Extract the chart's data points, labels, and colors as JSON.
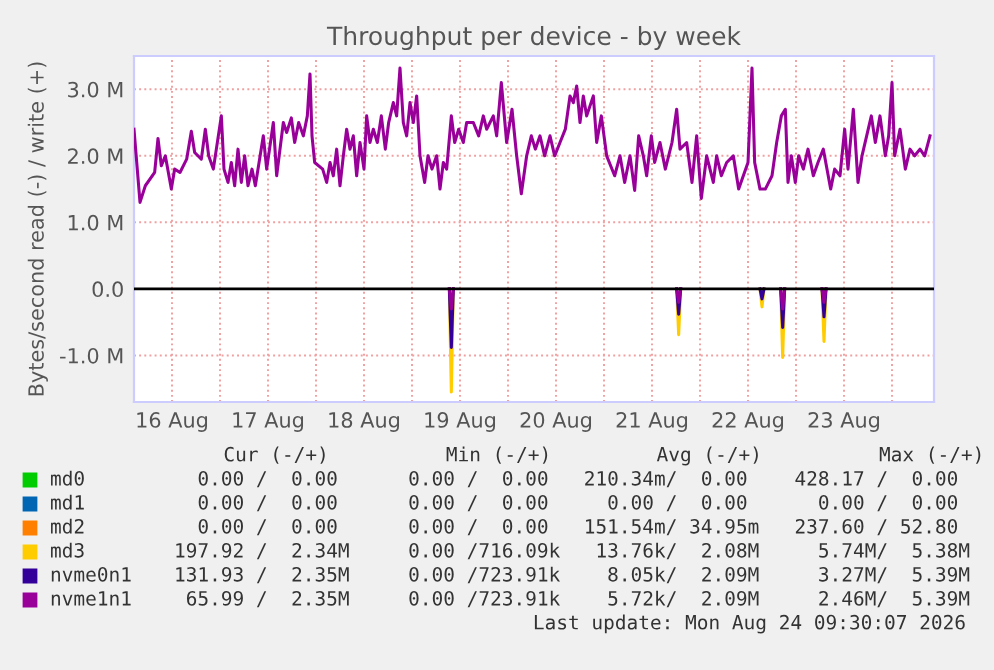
{
  "chart_data": {
    "type": "line",
    "title": "Throughput per device - by week",
    "ylabel": "Bytes/second read (-) / write (+)",
    "xlim": [
      "2026-08-16T02:30",
      "2026-08-24T10:30"
    ],
    "xticks": [
      {
        "value": "2026-08-16T12:00",
        "label": "16 Aug"
      },
      {
        "value": "2026-08-17T12:00",
        "label": "17 Aug"
      },
      {
        "value": "2026-08-18T12:00",
        "label": "18 Aug"
      },
      {
        "value": "2026-08-19T12:00",
        "label": "19 Aug"
      },
      {
        "value": "2026-08-20T12:00",
        "label": "20 Aug"
      },
      {
        "value": "2026-08-21T12:00",
        "label": "21 Aug"
      },
      {
        "value": "2026-08-22T12:00",
        "label": "22 Aug"
      },
      {
        "value": "2026-08-23T12:00",
        "label": "23 Aug"
      },
      {
        "value": "2026-08-17T00:00",
        "label": null
      },
      {
        "value": "2026-08-18T00:00",
        "label": null
      },
      {
        "value": "2026-08-19T00:00",
        "label": null
      },
      {
        "value": "2026-08-20T00:00",
        "label": null
      },
      {
        "value": "2026-08-21T00:00",
        "label": null
      },
      {
        "value": "2026-08-22T00:00",
        "label": null
      },
      {
        "value": "2026-08-23T00:00",
        "label": null
      },
      {
        "value": "2026-08-24T00:00",
        "label": null
      }
    ],
    "ylim": [
      -1.7,
      3.5
    ],
    "yticks": [
      {
        "value": -1.0,
        "label": "-1.0 M"
      },
      {
        "value": 0.0,
        "label": "0.0"
      },
      {
        "value": 1.0,
        "label": "1.0 M"
      },
      {
        "value": 2.0,
        "label": "2.0 M"
      },
      {
        "value": 3.0,
        "label": "3.0 M"
      }
    ],
    "grid": true,
    "legend": "bottom",
    "marker": "none",
    "line_style": "solid",
    "ref_lines": [
      {
        "axis": "y",
        "value": 0,
        "color": "#000000"
      }
    ],
    "series": [
      {
        "name": "md0",
        "color": "#00cc00"
      },
      {
        "name": "md1",
        "color": "#0066b3"
      },
      {
        "name": "md2",
        "color": "#ff8000"
      },
      {
        "name": "md3",
        "color": "#ffcc00",
        "x": [
          "2026-08-19T09:20",
          "2026-08-19T09:50",
          "2026-08-19T10:20",
          "2026-08-19T11:00",
          "2026-08-21T18:10",
          "2026-08-21T18:40",
          "2026-08-21T19:10",
          "2026-08-21T20:00",
          "2026-08-22T15:00",
          "2026-08-22T15:30",
          "2026-08-22T16:00",
          "2026-08-22T17:00",
          "2026-08-22T20:10",
          "2026-08-22T20:40",
          "2026-08-22T21:10",
          "2026-08-22T22:00",
          "2026-08-23T06:30",
          "2026-08-23T07:00",
          "2026-08-23T07:30"
        ],
        "values": [
          0,
          -1.55,
          0,
          null,
          0,
          -0.69,
          0,
          null,
          0,
          -0.27,
          0,
          null,
          0,
          -1.03,
          0,
          null,
          0,
          -0.79,
          0
        ]
      },
      {
        "name": "nvme0n1",
        "color": "#330099",
        "x": [
          "2026-08-19T09:20",
          "2026-08-19T09:50",
          "2026-08-19T10:20",
          "2026-08-19T11:00",
          "2026-08-21T18:10",
          "2026-08-21T18:40",
          "2026-08-21T19:10",
          "2026-08-21T20:00",
          "2026-08-22T15:00",
          "2026-08-22T15:30",
          "2026-08-22T16:00",
          "2026-08-22T17:00",
          "2026-08-22T20:10",
          "2026-08-22T20:40",
          "2026-08-22T21:10",
          "2026-08-22T22:00",
          "2026-08-23T06:30",
          "2026-08-23T07:00",
          "2026-08-23T07:30"
        ],
        "values": [
          0,
          -0.88,
          0,
          null,
          0,
          -0.38,
          0,
          null,
          0,
          -0.15,
          0,
          null,
          0,
          -0.58,
          0,
          null,
          0,
          -0.42,
          0
        ]
      },
      {
        "name": "nvme1n1",
        "color": "#990099",
        "x": [
          "2026-08-16T02:30",
          "2026-08-16T04:00",
          "2026-08-16T05:20",
          "2026-08-16T07:40",
          "2026-08-16T08:30",
          "2026-08-16T09:20",
          "2026-08-16T10:20",
          "2026-08-16T11:50",
          "2026-08-16T12:40",
          "2026-08-16T14:00",
          "2026-08-16T15:40",
          "2026-08-16T16:50",
          "2026-08-16T17:40",
          "2026-08-16T19:20",
          "2026-08-16T20:20",
          "2026-08-16T21:10",
          "2026-08-16T22:20",
          "2026-08-17T00:20",
          "2026-08-17T01:00",
          "2026-08-17T02:00",
          "2026-08-17T02:50",
          "2026-08-17T03:40",
          "2026-08-17T04:30",
          "2026-08-17T05:20",
          "2026-08-17T06:10",
          "2026-08-17T07:00",
          "2026-08-17T08:00",
          "2026-08-17T08:50",
          "2026-08-17T10:50",
          "2026-08-17T11:40",
          "2026-08-17T13:20",
          "2026-08-17T14:10",
          "2026-08-17T15:50",
          "2026-08-17T16:40",
          "2026-08-17T17:50",
          "2026-08-17T18:40",
          "2026-08-17T19:40",
          "2026-08-17T20:50",
          "2026-08-17T21:50",
          "2026-08-17T22:30",
          "2026-08-17T23:00",
          "2026-08-17T23:40",
          "2026-08-18T01:40",
          "2026-08-18T02:40",
          "2026-08-18T03:30",
          "2026-08-18T04:20",
          "2026-08-18T05:10",
          "2026-08-18T06:00",
          "2026-08-18T06:50",
          "2026-08-18T07:40",
          "2026-08-18T08:30",
          "2026-08-18T09:20",
          "2026-08-18T10:10",
          "2026-08-18T11:00",
          "2026-08-18T12:00",
          "2026-08-18T12:40",
          "2026-08-18T13:30",
          "2026-08-18T14:20",
          "2026-08-18T15:20",
          "2026-08-18T16:20",
          "2026-08-18T17:20",
          "2026-08-18T18:10",
          "2026-08-18T19:20",
          "2026-08-18T20:10",
          "2026-08-18T21:00",
          "2026-08-18T21:50",
          "2026-08-18T22:40",
          "2026-08-18T23:30",
          "2026-08-19T00:20",
          "2026-08-19T01:10",
          "2026-08-19T02:00",
          "2026-08-19T03:10",
          "2026-08-19T04:00",
          "2026-08-19T05:00",
          "2026-08-19T06:10",
          "2026-08-19T07:00",
          "2026-08-19T07:50",
          "2026-08-19T08:40",
          "2026-08-19T09:50",
          "2026-08-19T10:40",
          "2026-08-19T11:40",
          "2026-08-19T12:50",
          "2026-08-19T13:40",
          "2026-08-19T15:20",
          "2026-08-19T16:40",
          "2026-08-19T17:50",
          "2026-08-19T18:40",
          "2026-08-19T20:20",
          "2026-08-19T21:10",
          "2026-08-19T22:20",
          "2026-08-19T23:40",
          "2026-08-20T01:00",
          "2026-08-20T02:10",
          "2026-08-20T03:20",
          "2026-08-20T04:40",
          "2026-08-20T05:50",
          "2026-08-20T06:50",
          "2026-08-20T08:00",
          "2026-08-20T09:10",
          "2026-08-20T10:30",
          "2026-08-20T11:40",
          "2026-08-20T13:00",
          "2026-08-20T14:20",
          "2026-08-20T15:30",
          "2026-08-20T16:20",
          "2026-08-20T17:10",
          "2026-08-20T18:00",
          "2026-08-20T18:50",
          "2026-08-20T19:40",
          "2026-08-20T21:20",
          "2026-08-20T22:10",
          "2026-08-20T23:20",
          "2026-08-21T00:40",
          "2026-08-21T02:40",
          "2026-08-21T04:00",
          "2026-08-21T05:10",
          "2026-08-21T06:30",
          "2026-08-21T07:40",
          "2026-08-21T08:40",
          "2026-08-21T09:50",
          "2026-08-21T10:40",
          "2026-08-21T11:50",
          "2026-08-21T12:40",
          "2026-08-21T14:00",
          "2026-08-21T15:20",
          "2026-08-21T17:00",
          "2026-08-21T18:10",
          "2026-08-21T19:00",
          "2026-08-21T20:40",
          "2026-08-21T22:00",
          "2026-08-21T23:10",
          "2026-08-22T00:20",
          "2026-08-22T01:40",
          "2026-08-22T03:20",
          "2026-08-22T04:10",
          "2026-08-22T05:20",
          "2026-08-22T06:40",
          "2026-08-22T08:20",
          "2026-08-22T09:40",
          "2026-08-22T12:00",
          "2026-08-22T13:00",
          "2026-08-22T13:40",
          "2026-08-22T15:00",
          "2026-08-22T16:20",
          "2026-08-22T18:00",
          "2026-08-22T19:10",
          "2026-08-22T20:20",
          "2026-08-22T21:20",
          "2026-08-22T22:00",
          "2026-08-22T22:50",
          "2026-08-22T23:50",
          "2026-08-23T00:40",
          "2026-08-23T01:50",
          "2026-08-23T03:00",
          "2026-08-23T04:20",
          "2026-08-23T05:30",
          "2026-08-23T06:50",
          "2026-08-23T08:40",
          "2026-08-23T09:40",
          "2026-08-23T11:00",
          "2026-08-23T12:10",
          "2026-08-23T13:00",
          "2026-08-23T14:20",
          "2026-08-23T15:30",
          "2026-08-23T16:30",
          "2026-08-23T17:40",
          "2026-08-23T18:50",
          "2026-08-23T19:50",
          "2026-08-23T21:00",
          "2026-08-23T22:20",
          "2026-08-23T23:10",
          "2026-08-24T00:00",
          "2026-08-24T00:40",
          "2026-08-24T02:00",
          "2026-08-24T03:20",
          "2026-08-24T04:30",
          "2026-08-24T05:40",
          "2026-08-24T07:00",
          "2026-08-24T08:10",
          "2026-08-24T09:30"
        ],
        "values": [
          2.4,
          1.3,
          1.55,
          1.75,
          2.26,
          1.85,
          2.0,
          1.5,
          1.8,
          1.75,
          1.95,
          2.37,
          2.05,
          1.95,
          2.4,
          2.0,
          1.8,
          2.6,
          1.8,
          1.6,
          1.9,
          1.55,
          2.1,
          1.6,
          2.0,
          1.55,
          1.8,
          1.55,
          2.3,
          1.8,
          2.5,
          1.7,
          2.5,
          2.35,
          2.57,
          2.2,
          2.5,
          2.3,
          2.6,
          3.23,
          2.3,
          1.9,
          1.8,
          1.6,
          1.9,
          1.7,
          2.1,
          1.55,
          2.0,
          2.4,
          2.1,
          2.3,
          1.7,
          2.2,
          1.8,
          2.6,
          2.2,
          2.4,
          2.2,
          2.6,
          2.1,
          2.5,
          2.8,
          2.6,
          3.32,
          2.5,
          2.3,
          2.8,
          2.5,
          2.9,
          2.0,
          1.6,
          2.0,
          1.8,
          2.0,
          1.5,
          1.9,
          1.8,
          2.6,
          2.2,
          2.4,
          2.2,
          2.5,
          2.5,
          2.3,
          2.6,
          2.4,
          2.6,
          2.3,
          3.1,
          2.2,
          2.7,
          2.0,
          1.43,
          2.0,
          2.3,
          2.1,
          2.3,
          2.0,
          2.3,
          2.0,
          2.2,
          2.4,
          2.9,
          2.8,
          3.05,
          2.5,
          2.9,
          2.6,
          2.9,
          2.2,
          2.6,
          2.0,
          1.7,
          2.0,
          1.6,
          2.0,
          1.48,
          2.3,
          2.0,
          1.7,
          2.3,
          1.9,
          2.2,
          1.8,
          2.2,
          2.7,
          2.1,
          2.2,
          1.6,
          2.3,
          1.36,
          2.0,
          1.6,
          2.0,
          1.7,
          1.9,
          2.0,
          1.5,
          1.9,
          3.32,
          1.9,
          1.5,
          1.5,
          1.7,
          2.2,
          2.6,
          2.7,
          1.6,
          2.0,
          1.6,
          2.0,
          1.8,
          2.1,
          1.7,
          1.9,
          2.1,
          1.5,
          1.8,
          1.7,
          2.4,
          1.8,
          2.7,
          1.6,
          2.0,
          2.3,
          2.6,
          2.2,
          2.6,
          2.0,
          2.3,
          3.1,
          2.0,
          2.4,
          1.8,
          2.1,
          2.0,
          2.1,
          2.0,
          2.3
        ]
      },
      {
        "color": "#990099",
        "x": [
          "2026-08-19T09:20",
          "2026-08-19T09:50",
          "2026-08-19T10:20",
          "2026-08-19T11:00",
          "2026-08-21T18:10",
          "2026-08-21T18:40",
          "2026-08-21T19:10",
          "2026-08-21T20:00",
          "2026-08-22T20:10",
          "2026-08-22T20:40",
          "2026-08-22T21:10",
          "2026-08-22T22:00",
          "2026-08-23T06:30",
          "2026-08-23T07:00",
          "2026-08-23T07:30"
        ],
        "values": [
          0,
          -0.3,
          0,
          null,
          0,
          -0.2,
          0,
          null,
          0,
          -0.3,
          0,
          null,
          0,
          -0.2,
          0
        ]
      }
    ],
    "annotations": [
      "  Cur (-/+)          Min (-/+)         Avg (-/+)          Max (-/+)",
      "  0.00 /  0.00      0.00 /  0.00   210.34m/  0.00    428.17 /  0.00",
      "  0.00 /  0.00      0.00 /  0.00     0.00 /  0.00      0.00 /  0.00",
      "  0.00 /  0.00      0.00 /  0.00   151.54m/ 34.95m   237.60 / 52.80",
      "197.92 /  2.34M     0.00 /716.09k   13.76k/  2.08M     5.74M/  5.38M",
      "131.93 /  2.35M     0.00 /723.91k    8.05k/  2.09M     3.27M/  5.39M",
      " 65.99 /  2.35M     0.00 /723.91k    5.72k/  2.09M     2.46M/  5.39M",
      "Last update: Mon Aug 24 09:30:07 2026"
    ]
  }
}
